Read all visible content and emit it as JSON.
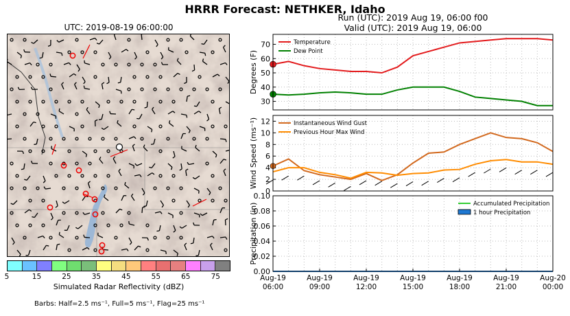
{
  "suptitle": "HRRR Forecast: NETHKER, Idaho",
  "map": {
    "title": "UTC: 2019-08-19 06:00:00",
    "colorbar_label": "Simulated Radar Reflectivity (dBZ)",
    "colorbar_ticks": [
      "5",
      "15",
      "25",
      "35",
      "45",
      "55",
      "65",
      "75"
    ],
    "colorbar_colors": [
      "#80ffff",
      "#6ac2ff",
      "#8080ff",
      "#80ff80",
      "#6fdd6f",
      "#7abf7a",
      "#ffff80",
      "#f5de80",
      "#ffc87a",
      "#ff8080",
      "#e87070",
      "#e68080",
      "#ff80ff",
      "#c8a0ec",
      "#808080"
    ],
    "barb_note": "Barbs: Half=2.5 ms⁻¹, Full=5 ms⁻¹, Flag=25 ms⁻¹"
  },
  "run": {
    "line1": "Run (UTC): 2019 Aug 19, 06:00 f00",
    "line2": "Valid (UTC): 2019 Aug 19, 06:00"
  },
  "chart_data": [
    {
      "type": "line",
      "ylabel": "Degrees (F)",
      "ylim": [
        24,
        77
      ],
      "yticks": [
        30,
        40,
        50,
        60,
        70
      ],
      "x": [
        "Aug-19 06:00",
        "07:00",
        "08:00",
        "09:00",
        "10:00",
        "11:00",
        "12:00",
        "13:00",
        "14:00",
        "15:00",
        "16:00",
        "17:00",
        "18:00",
        "19:00",
        "20:00",
        "21:00",
        "22:00",
        "23:00",
        "Aug-20 00:00"
      ],
      "series": [
        {
          "name": "Temperature",
          "color": "#e31a1c",
          "values": [
            56,
            58,
            55,
            53,
            52,
            51,
            51,
            50,
            54,
            62,
            65,
            68,
            71,
            72,
            73,
            74,
            74,
            74,
            73
          ]
        },
        {
          "name": "Dew Point",
          "color": "#008000",
          "values": [
            35,
            34.5,
            35,
            36,
            36.5,
            36,
            35,
            35,
            38,
            40,
            40,
            40,
            37,
            33,
            32,
            31,
            30,
            27,
            27
          ]
        }
      ],
      "legend": "upper-left"
    },
    {
      "type": "line",
      "ylabel": "Wind Speed  (ms⁻¹)",
      "ylim": [
        0,
        13
      ],
      "yticks": [
        0,
        2,
        4,
        6,
        8,
        10,
        12
      ],
      "series": [
        {
          "name": "Instantaneous Wind Gust",
          "color": "#d2691e",
          "values": [
            4.3,
            5.5,
            3.5,
            2.8,
            2.4,
            2.0,
            3.0,
            1.8,
            2.8,
            4.8,
            6.5,
            6.7,
            8.0,
            9.0,
            10.0,
            9.2,
            9.0,
            8.3,
            6.8
          ]
        },
        {
          "name": "Previous Hour Max Wind",
          "color": "#ff8c00",
          "values": [
            3.3,
            4.0,
            4.0,
            3.2,
            2.8,
            2.2,
            3.2,
            3.1,
            2.7,
            3.0,
            3.1,
            3.6,
            3.7,
            4.6,
            5.2,
            5.4,
            5.0,
            5.0,
            4.6
          ]
        }
      ],
      "legend": "upper-left"
    },
    {
      "type": "line",
      "ylabel": "Precipitation (in)",
      "ylim": [
        0,
        0.1
      ],
      "yticks": [
        "0.00",
        "0.02",
        "0.04",
        "0.06",
        "0.08",
        "0.10"
      ],
      "series": [
        {
          "name": "Accumulated Precipitation",
          "color": "#32cd32",
          "values": [
            0,
            0,
            0,
            0,
            0,
            0,
            0,
            0,
            0,
            0,
            0,
            0,
            0,
            0,
            0,
            0,
            0,
            0,
            0
          ]
        },
        {
          "name": "1 hour Precipitation",
          "color": "#1e78d2",
          "values": [
            0,
            0,
            0,
            0,
            0,
            0,
            0,
            0,
            0,
            0,
            0,
            0,
            0,
            0,
            0,
            0,
            0,
            0,
            0
          ]
        }
      ],
      "legend": "upper-right"
    }
  ],
  "x_tick_labels": [
    {
      "l1": "Aug-19",
      "l2": "06:00"
    },
    {
      "l1": "Aug-19",
      "l2": "09:00"
    },
    {
      "l1": "Aug-19",
      "l2": "12:00"
    },
    {
      "l1": "Aug-19",
      "l2": "15:00"
    },
    {
      "l1": "Aug-19",
      "l2": "18:00"
    },
    {
      "l1": "Aug-19",
      "l2": "21:00"
    },
    {
      "l1": "Aug-20",
      "l2": "00:00"
    }
  ]
}
